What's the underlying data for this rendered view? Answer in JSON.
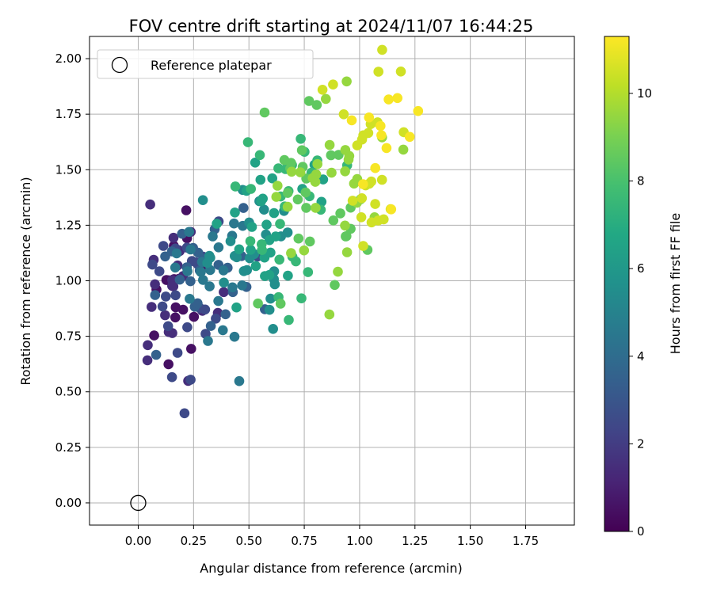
{
  "chart_data": {
    "type": "scatter",
    "title": "FOV centre drift starting at 2024/11/07 16:44:25",
    "xlabel": "Angular distance from reference (arcmin)",
    "ylabel": "Rotation from reference (arcmin)",
    "xlim": [
      -0.22,
      1.97
    ],
    "ylim": [
      -0.1,
      2.1
    ],
    "xticks": [
      "0.00",
      "0.25",
      "0.50",
      "0.75",
      "1.00",
      "1.25",
      "1.50",
      "1.75"
    ],
    "yticks": [
      "0.00",
      "0.25",
      "0.50",
      "0.75",
      "1.00",
      "1.25",
      "1.50",
      "1.75",
      "2.00"
    ],
    "grid": true,
    "legend": {
      "position": "top-left",
      "entries": [
        "Reference platepar"
      ]
    },
    "reference_point": {
      "x": 0.0,
      "y": 0.0
    },
    "colorbar": {
      "label": "Hours from first FF file",
      "range": [
        0,
        11.3
      ],
      "ticks": [
        "0",
        "2",
        "4",
        "6",
        "8",
        "10"
      ],
      "colormap": "viridis"
    },
    "clusters": [
      {
        "hours": 0.5,
        "x": 0.17,
        "y": 0.95,
        "sx": 0.08,
        "sy": 0.18,
        "n": 16
      },
      {
        "hours": 1.5,
        "x": 0.2,
        "y": 0.92,
        "sx": 0.09,
        "sy": 0.2,
        "n": 22
      },
      {
        "hours": 2.5,
        "x": 0.25,
        "y": 0.98,
        "sx": 0.1,
        "sy": 0.22,
        "n": 24
      },
      {
        "hours": 3.5,
        "x": 0.3,
        "y": 1.03,
        "sx": 0.1,
        "sy": 0.2,
        "n": 24
      },
      {
        "hours": 4.5,
        "x": 0.38,
        "y": 1.08,
        "sx": 0.11,
        "sy": 0.2,
        "n": 24
      },
      {
        "hours": 5.5,
        "x": 0.48,
        "y": 1.15,
        "sx": 0.12,
        "sy": 0.2,
        "n": 26
      },
      {
        "hours": 6.5,
        "x": 0.58,
        "y": 1.22,
        "sx": 0.12,
        "sy": 0.2,
        "n": 26
      },
      {
        "hours": 7.5,
        "x": 0.7,
        "y": 1.3,
        "sx": 0.12,
        "sy": 0.2,
        "n": 28
      },
      {
        "hours": 8.5,
        "x": 0.8,
        "y": 1.38,
        "sx": 0.11,
        "sy": 0.22,
        "n": 28
      },
      {
        "hours": 9.5,
        "x": 0.88,
        "y": 1.4,
        "sx": 0.1,
        "sy": 0.2,
        "n": 30
      },
      {
        "hours": 10.5,
        "x": 1.05,
        "y": 1.55,
        "sx": 0.1,
        "sy": 0.2,
        "n": 26
      },
      {
        "hours": 11.2,
        "x": 1.12,
        "y": 1.62,
        "sx": 0.08,
        "sy": 0.16,
        "n": 12
      }
    ]
  }
}
